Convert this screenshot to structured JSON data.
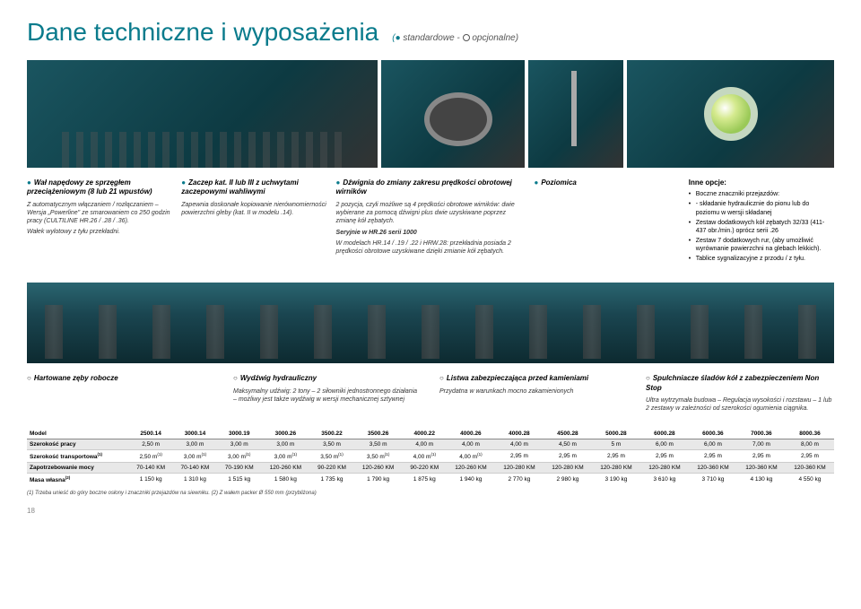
{
  "title": "Dane techniczne i wyposażenia",
  "legend": "(● standardowe - ○ opcjonalne)",
  "features_top": [
    {
      "h": "Wał napędowy ze sprzęgłem przeciążeniowym (8 lub 21 wpustów)",
      "p": [
        "Z automatycznym włączaniem / rozłączaniem – Wersja „Powerline\" ze smarowaniem co 250 godzin pracy (CULTILINE HR.26 / .28 / .36).",
        "Wałek wylotowy z tyłu przekładni."
      ]
    },
    {
      "h": "Zaczep kat. II lub III z uchwytami zaczepowymi wahliwymi",
      "p": [
        "Zapewnia doskonałe kopiowanie nierównomierności powierzchni gleby (kat. II w modelu .14)."
      ]
    },
    {
      "h": "Dźwignia do zmiany zakresu prędkości obrotowej wirników",
      "p": [
        "2 pozycja, czyli możliwe są 4 prędkości obrotowe wirników: dwie wybierane za pomocą dźwigni plus dwie uzyskiwane poprzez zmianę kół zębatych.",
        "Seryjnie w HR.26 serii 1000",
        "W modelach HR.14 / .19 / .22 i HRW.28: przekładnia posiada 2 prędkości obrotowe uzyskiwane dzięki zmianie kół zębatych."
      ],
      "bold2": true
    },
    {
      "h": "Poziomica",
      "p": []
    }
  ],
  "inne_opcje": {
    "h": "Inne opcje:",
    "items": [
      "Boczne znaczniki przejazdów:",
      "- składanie hydraulicznie do pionu lub do poziomu w wersji składanej",
      "Zestaw dodatkowych kół zębatych 32/33 (411-437 obr./min.) oprócz serii .26",
      "Zestaw 7 dodatkowych rur, (aby umożliwić wyrównanie powierzchni na glebach lekkich).",
      "Tablice sygnalizacyjne z przodu / z tyłu."
    ]
  },
  "features_bottom": [
    {
      "h": "Hartowane zęby robocze",
      "p": []
    },
    {
      "h": "Wydźwig hydrauliczny",
      "p": [
        "Maksymalny udźwig: 2 tony – 2 siłowniki jednostronnego działania – możliwy jest także wydźwig w wersji mechanicznej sztywnej"
      ]
    },
    {
      "h": "Listwa zabezpieczająca przed kamieniami",
      "p": [
        "Przydatna w warunkach mocno zakamienionych"
      ]
    },
    {
      "h": "Spulchniacze śladów kół z zabezpieczeniem Non Stop",
      "p": [
        "Ultra wytrzymała budowa – Regulacja wysokości i rozstawu – 1 lub 2 zestawy w zależności od szerokości ogumienia ciągnika."
      ]
    }
  ],
  "table": {
    "headers": [
      "Model",
      "2500.14",
      "3000.14",
      "3000.19",
      "3000.26",
      "3500.22",
      "3500.26",
      "4000.22",
      "4000.26",
      "4000.28",
      "4500.28",
      "5000.28",
      "6000.28",
      "6000.36",
      "7000.36",
      "8000.36"
    ],
    "rows": [
      [
        "Szerokość pracy",
        "2,50 m",
        "3,00 m",
        "3,00 m",
        "3,00 m",
        "3,50 m",
        "3,50 m",
        "4,00 m",
        "4,00 m",
        "4,00 m",
        "4,50 m",
        "5 m",
        "6,00 m",
        "6,00 m",
        "7,00 m",
        "8,00 m"
      ],
      [
        "Szerokość transportowa<sup>(1)</sup>",
        "2,50 m<sup>(1)</sup>",
        "3,00 m<sup>(1)</sup>",
        "3,00 m<sup>(1)</sup>",
        "3,00 m<sup>(1)</sup>",
        "3,50 m<sup>(1)</sup>",
        "3,50 m<sup>(1)</sup>",
        "4,00 m<sup>(1)</sup>",
        "4,00 m<sup>(1)</sup>",
        "2,95 m",
        "2,95 m",
        "2,95 m",
        "2,95 m",
        "2,95 m",
        "2,95 m",
        "2,95 m"
      ],
      [
        "Zapotrzebowanie mocy",
        "70-140 KM",
        "70-140 KM",
        "70-190 KM",
        "120-260 KM",
        "90-220 KM",
        "120-260 KM",
        "90-220 KM",
        "120-260 KM",
        "120-280 KM",
        "120-280 KM",
        "120-280 KM",
        "120-280 KM",
        "120-360 KM",
        "120-360 KM",
        "120-360 KM"
      ],
      [
        "Masa własna<sup>(2)</sup>",
        "1 150 kg",
        "1 310 kg",
        "1 515 kg",
        "1 580 kg",
        "1 735 kg",
        "1 790 kg",
        "1 875 kg",
        "1 940 kg",
        "2 770 kg",
        "2 980 kg",
        "3 190 kg",
        "3 610 kg",
        "3 710 kg",
        "4 130 kg",
        "4 550 kg"
      ]
    ]
  },
  "footnote": "(1) Trzeba unieść do góry boczne osłony i znaczniki przejazdów na siewniku.   (2) Z wałem packer Ø 550 mm (przybliżona)",
  "pagenum": "18"
}
